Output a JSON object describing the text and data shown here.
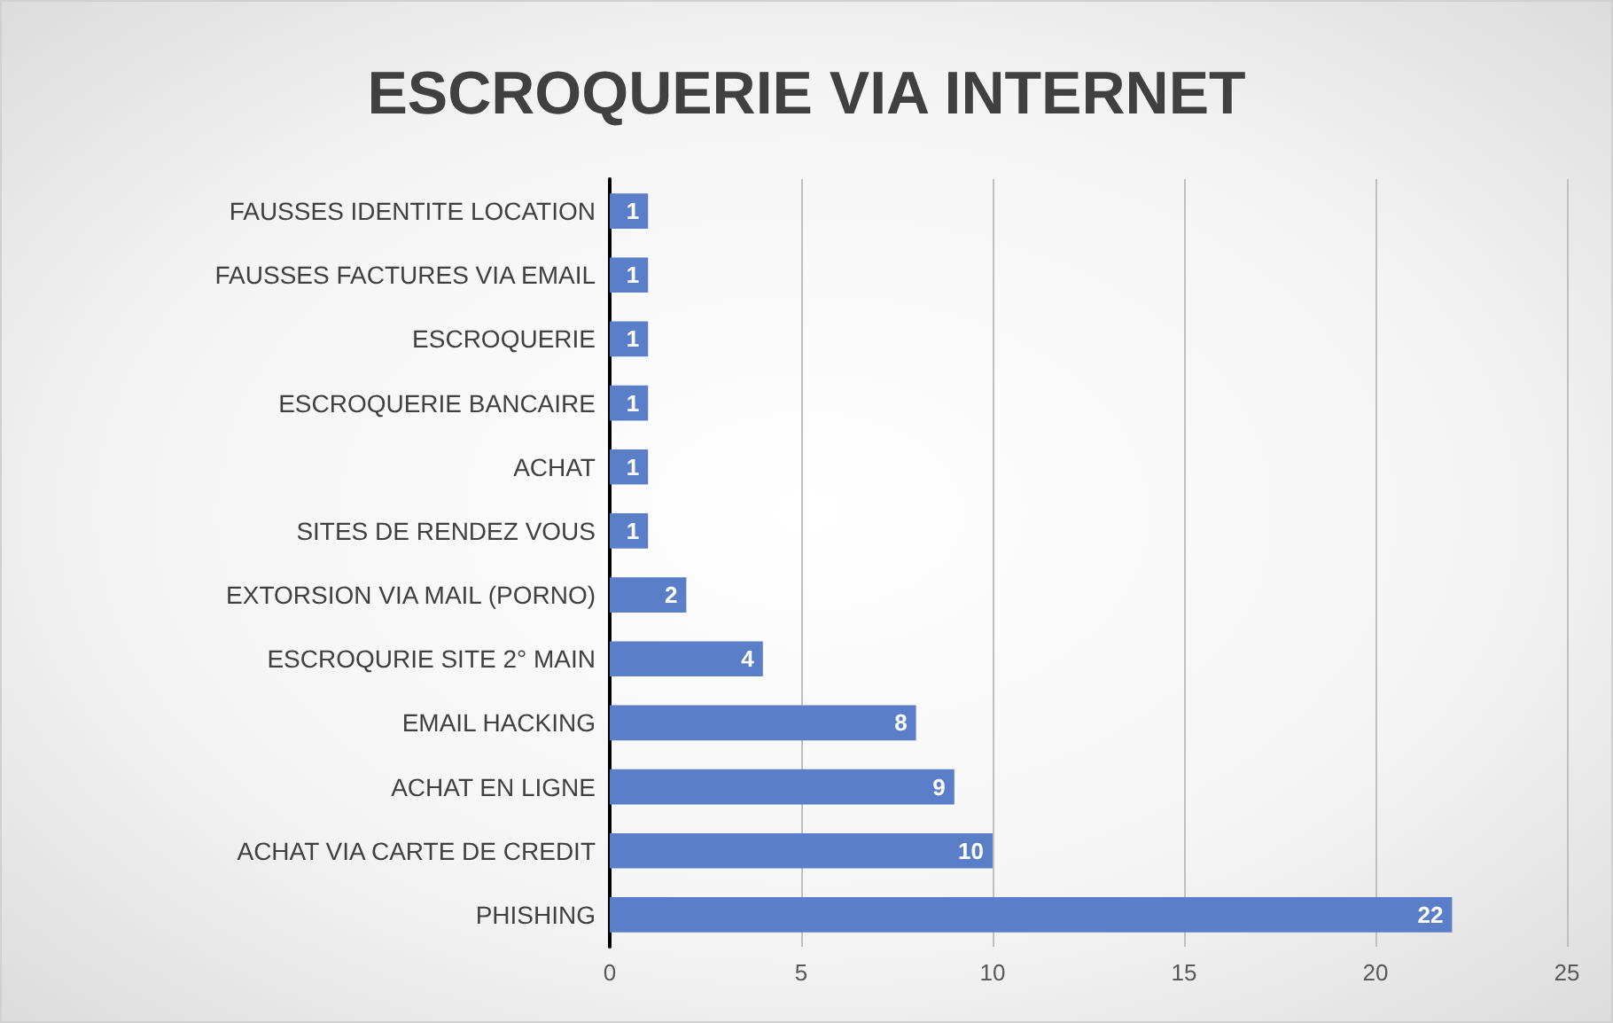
{
  "chart_data": {
    "type": "bar",
    "orientation": "horizontal",
    "title": "ESCROQUERIE VIA INTERNET",
    "categories": [
      "FAUSSES IDENTITE LOCATION",
      "FAUSSES FACTURES VIA EMAIL",
      "ESCROQUERIE",
      "ESCROQUERIE BANCAIRE",
      "ACHAT",
      "SITES DE RENDEZ VOUS",
      "EXTORSION VIA MAIL (PORNO)",
      "ESCROQURIE SITE 2° MAIN",
      "EMAIL HACKING",
      "ACHAT EN LIGNE",
      "ACHAT VIA CARTE DE CREDIT",
      "PHISHING"
    ],
    "values": [
      1,
      1,
      1,
      1,
      1,
      1,
      2,
      4,
      8,
      9,
      10,
      22
    ],
    "color": "#5b7ec8",
    "xlim": [
      0,
      25
    ],
    "xticks": [
      0,
      5,
      10,
      15,
      20,
      25
    ],
    "grid": "x",
    "data_labels": true
  }
}
